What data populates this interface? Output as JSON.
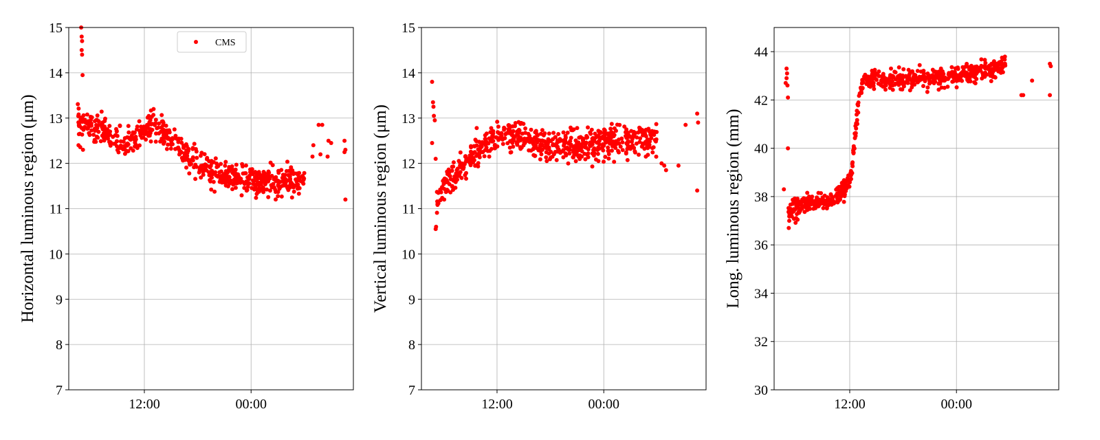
{
  "chart_data": [
    {
      "type": "scatter",
      "ylabel": "Horizontal luminous region (μm)",
      "ylim": [
        7,
        15
      ],
      "y_ticks": [
        7,
        8,
        9,
        10,
        11,
        12,
        13,
        14,
        15
      ],
      "y_tick_labels": [
        "7",
        "8",
        "9",
        "10",
        "11",
        "12",
        "13",
        "14",
        "15"
      ],
      "x_ticks": [
        12,
        24
      ],
      "x_tick_labels": [
        "12:00",
        "00:00"
      ],
      "xlim_hours": [
        3.5,
        35.5
      ],
      "grid": true,
      "legend": {
        "position": "top-center",
        "entries": [
          "CMS"
        ]
      },
      "series": [
        {
          "name": "CMS",
          "color": "#ff0000",
          "trend": [
            [
              4.5,
              12.9
            ],
            [
              6,
              12.8
            ],
            [
              8,
              12.6
            ],
            [
              10,
              12.4
            ],
            [
              11.5,
              12.6
            ],
            [
              13,
              12.9
            ],
            [
              14.5,
              12.6
            ],
            [
              16,
              12.3
            ],
            [
              18,
              12.0
            ],
            [
              20,
              11.8
            ],
            [
              22,
              11.7
            ],
            [
              24,
              11.6
            ],
            [
              26,
              11.6
            ],
            [
              28,
              11.6
            ],
            [
              30,
              11.7
            ]
          ],
          "spread": 0.15,
          "points": [
            [
              4.9,
              15.0
            ],
            [
              4.95,
              14.8
            ],
            [
              5.0,
              14.7
            ],
            [
              4.95,
              14.5
            ],
            [
              5.0,
              14.4
            ],
            [
              5.05,
              13.95
            ],
            [
              4.6,
              12.4
            ],
            [
              5.1,
              12.3
            ],
            [
              31.0,
              12.4
            ],
            [
              31.6,
              12.85
            ],
            [
              32.0,
              12.85
            ],
            [
              32.7,
              12.5
            ],
            [
              30.9,
              12.15
            ],
            [
              31.8,
              12.2
            ],
            [
              32.6,
              12.15
            ],
            [
              33.0,
              12.45
            ],
            [
              34.5,
              12.5
            ],
            [
              34.6,
              12.3
            ],
            [
              34.5,
              12.25
            ],
            [
              34.6,
              11.2
            ]
          ]
        }
      ]
    },
    {
      "type": "scatter",
      "ylabel": "Vertical luminous region (μm)",
      "ylim": [
        7,
        15
      ],
      "y_ticks": [
        7,
        8,
        9,
        10,
        11,
        12,
        13,
        14,
        15
      ],
      "y_tick_labels": [
        "7",
        "8",
        "9",
        "10",
        "11",
        "12",
        "13",
        "14",
        "15"
      ],
      "x_ticks": [
        12,
        24
      ],
      "x_tick_labels": [
        "12:00",
        "00:00"
      ],
      "xlim_hours": [
        3.5,
        35.5
      ],
      "grid": true,
      "series": [
        {
          "name": "",
          "color": "#ff0000",
          "trend": [
            [
              5.2,
              11.2
            ],
            [
              6,
              11.5
            ],
            [
              7,
              11.7
            ],
            [
              8,
              11.9
            ],
            [
              9,
              12.1
            ],
            [
              10,
              12.3
            ],
            [
              11,
              12.45
            ],
            [
              12,
              12.6
            ],
            [
              13,
              12.6
            ],
            [
              14,
              12.55
            ],
            [
              16,
              12.45
            ],
            [
              18,
              12.4
            ],
            [
              20,
              12.35
            ],
            [
              22,
              12.4
            ],
            [
              24,
              12.45
            ],
            [
              26,
              12.5
            ],
            [
              28,
              12.55
            ],
            [
              30,
              12.5
            ]
          ],
          "spread": 0.17,
          "points": [
            [
              4.7,
              13.8
            ],
            [
              4.8,
              13.35
            ],
            [
              4.85,
              13.25
            ],
            [
              4.9,
              13.05
            ],
            [
              5.0,
              12.95
            ],
            [
              4.7,
              12.45
            ],
            [
              5.1,
              12.1
            ],
            [
              5.1,
              10.55
            ],
            [
              5.15,
              10.6
            ],
            [
              5.3,
              11.1
            ],
            [
              30.8,
              11.95
            ],
            [
              30.5,
              12.0
            ],
            [
              31.0,
              11.85
            ],
            [
              32.4,
              11.95
            ],
            [
              33.2,
              12.85
            ],
            [
              34.5,
              13.1
            ],
            [
              34.6,
              12.9
            ],
            [
              34.5,
              11.4
            ]
          ]
        }
      ]
    },
    {
      "type": "scatter",
      "ylabel": "Long. luminous region (mm)",
      "ylim": [
        30,
        45
      ],
      "y_ticks": [
        30,
        32,
        34,
        36,
        38,
        40,
        42,
        44
      ],
      "y_tick_labels": [
        "30",
        "32",
        "34",
        "36",
        "38",
        "40",
        "42",
        "44"
      ],
      "x_ticks": [
        12,
        24
      ],
      "x_tick_labels": [
        "12:00",
        "00:00"
      ],
      "xlim_hours": [
        3.5,
        35.5
      ],
      "grid": true,
      "series": [
        {
          "name": "",
          "color": "#ff0000",
          "trend": [
            [
              5.1,
              37.4
            ],
            [
              6,
              37.6
            ],
            [
              8,
              37.75
            ],
            [
              10,
              37.9
            ],
            [
              11,
              38.1
            ],
            [
              11.8,
              38.5
            ],
            [
              12.2,
              38.9
            ],
            [
              12.5,
              40.0
            ],
            [
              12.8,
              41.2
            ],
            [
              13.1,
              42.3
            ],
            [
              13.5,
              42.8
            ],
            [
              16,
              42.85
            ],
            [
              18,
              42.85
            ],
            [
              20,
              42.9
            ],
            [
              22,
              42.95
            ],
            [
              24,
              43.0
            ],
            [
              26,
              43.1
            ],
            [
              28,
              43.25
            ],
            [
              29.5,
              43.4
            ]
          ],
          "spread": 0.2,
          "points": [
            [
              4.6,
              38.3
            ],
            [
              4.8,
              42.7
            ],
            [
              4.9,
              42.9
            ],
            [
              4.95,
              43.1
            ],
            [
              4.9,
              43.3
            ],
            [
              5.0,
              42.6
            ],
            [
              5.05,
              42.1
            ],
            [
              5.05,
              40.0
            ],
            [
              5.15,
              36.7
            ],
            [
              5.2,
              37.0
            ],
            [
              31.3,
              42.2
            ],
            [
              31.5,
              42.2
            ],
            [
              32.5,
              42.8
            ],
            [
              34.5,
              43.5
            ],
            [
              34.6,
              43.4
            ],
            [
              34.5,
              42.2
            ]
          ]
        }
      ]
    }
  ]
}
